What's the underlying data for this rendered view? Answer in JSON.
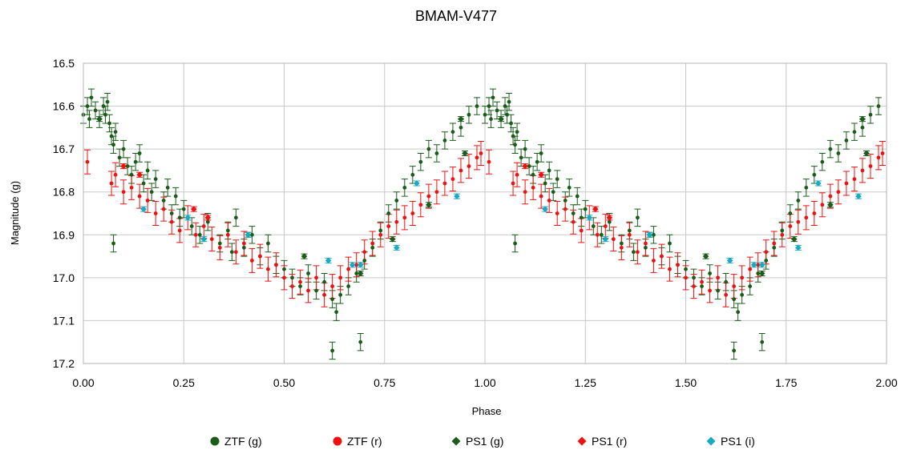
{
  "chart_data": {
    "type": "scatter",
    "title": "BMAM-V477",
    "xlabel": "Phase",
    "ylabel": "Magnitude (g)",
    "xlim": [
      0,
      2
    ],
    "ylim": [
      16.5,
      17.2
    ],
    "y_inverted": true,
    "grid": true,
    "legend_position": "bottom",
    "x_ticks": [
      0,
      0.25,
      0.5,
      0.75,
      1,
      1.25,
      1.5,
      1.75,
      2
    ],
    "x_tick_labels": [
      "0.00",
      "0.25",
      "0.50",
      "0.75",
      "1.00",
      "1.25",
      "1.50",
      "1.75",
      "2.00"
    ],
    "y_ticks": [
      16.5,
      16.6,
      16.7,
      16.8,
      16.9,
      17.0,
      17.1,
      17.2
    ],
    "y_tick_labels": [
      "16.5",
      "16.6",
      "16.7",
      "16.8",
      "16.9",
      "17.0",
      "17.1",
      "17.2"
    ],
    "series": [
      {
        "name": "ZTF (g)",
        "color": "#1a5c1a",
        "marker": "circle",
        "error": 0.02,
        "points": [
          [
            0.0,
            16.62
          ],
          [
            0.01,
            16.6
          ],
          [
            0.015,
            16.63
          ],
          [
            0.02,
            16.58
          ],
          [
            0.03,
            16.61
          ],
          [
            0.04,
            16.63
          ],
          [
            0.05,
            16.6
          ],
          [
            0.055,
            16.62
          ],
          [
            0.06,
            16.59
          ],
          [
            0.065,
            16.64
          ],
          [
            0.07,
            16.67
          ],
          [
            0.075,
            16.69
          ],
          [
            0.08,
            16.66
          ],
          [
            0.09,
            16.72
          ],
          [
            0.1,
            16.7
          ],
          [
            0.11,
            16.74
          ],
          [
            0.12,
            16.76
          ],
          [
            0.13,
            16.73
          ],
          [
            0.14,
            16.71
          ],
          [
            0.15,
            16.78
          ],
          [
            0.16,
            16.75
          ],
          [
            0.17,
            16.8
          ],
          [
            0.18,
            16.77
          ],
          [
            0.2,
            16.82
          ],
          [
            0.21,
            16.79
          ],
          [
            0.22,
            16.85
          ],
          [
            0.23,
            16.81
          ],
          [
            0.24,
            16.86
          ],
          [
            0.25,
            16.84
          ],
          [
            0.27,
            16.88
          ],
          [
            0.29,
            16.9
          ],
          [
            0.31,
            16.87
          ],
          [
            0.34,
            16.92
          ],
          [
            0.36,
            16.89
          ],
          [
            0.37,
            16.94
          ],
          [
            0.38,
            16.86
          ],
          [
            0.4,
            16.93
          ],
          [
            0.42,
            16.9
          ],
          [
            0.44,
            16.95
          ],
          [
            0.46,
            16.92
          ],
          [
            0.48,
            16.97
          ],
          [
            0.5,
            16.98
          ],
          [
            0.52,
            17.0
          ],
          [
            0.54,
            17.02
          ],
          [
            0.56,
            16.99
          ],
          [
            0.58,
            17.03
          ],
          [
            0.6,
            17.01
          ],
          [
            0.62,
            17.05
          ],
          [
            0.63,
            17.08
          ],
          [
            0.64,
            17.04
          ],
          [
            0.66,
            17.02
          ],
          [
            0.68,
            16.99
          ],
          [
            0.7,
            16.96
          ],
          [
            0.72,
            16.93
          ],
          [
            0.74,
            16.89
          ],
          [
            0.76,
            16.85
          ],
          [
            0.78,
            16.82
          ],
          [
            0.8,
            16.79
          ],
          [
            0.82,
            16.76
          ],
          [
            0.84,
            16.73
          ],
          [
            0.86,
            16.7
          ],
          [
            0.88,
            16.71
          ],
          [
            0.9,
            16.68
          ],
          [
            0.92,
            16.66
          ],
          [
            0.94,
            16.65
          ],
          [
            0.96,
            16.62
          ],
          [
            0.98,
            16.6
          ],
          [
            0.075,
            16.92
          ],
          [
            0.62,
            17.17
          ],
          [
            0.69,
            17.15
          ]
        ]
      },
      {
        "name": "ZTF (r)",
        "color": "#ee1111",
        "marker": "circle",
        "error": 0.028,
        "points": [
          [
            0.01,
            16.73
          ],
          [
            0.07,
            16.78
          ],
          [
            0.08,
            16.76
          ],
          [
            0.1,
            16.8
          ],
          [
            0.12,
            16.79
          ],
          [
            0.14,
            16.81
          ],
          [
            0.16,
            16.82
          ],
          [
            0.18,
            16.85
          ],
          [
            0.2,
            16.84
          ],
          [
            0.22,
            16.87
          ],
          [
            0.24,
            16.89
          ],
          [
            0.26,
            16.86
          ],
          [
            0.28,
            16.9
          ],
          [
            0.3,
            16.88
          ],
          [
            0.32,
            16.91
          ],
          [
            0.34,
            16.93
          ],
          [
            0.36,
            16.9
          ],
          [
            0.38,
            16.94
          ],
          [
            0.4,
            16.92
          ],
          [
            0.42,
            16.96
          ],
          [
            0.44,
            16.95
          ],
          [
            0.46,
            16.98
          ],
          [
            0.48,
            16.97
          ],
          [
            0.5,
            17.0
          ],
          [
            0.52,
            17.02
          ],
          [
            0.54,
            17.01
          ],
          [
            0.56,
            17.03
          ],
          [
            0.58,
            17.0
          ],
          [
            0.6,
            17.04
          ],
          [
            0.62,
            17.02
          ],
          [
            0.64,
            17.0
          ],
          [
            0.66,
            16.98
          ],
          [
            0.68,
            16.97
          ],
          [
            0.7,
            16.94
          ],
          [
            0.72,
            16.92
          ],
          [
            0.74,
            16.9
          ],
          [
            0.76,
            16.88
          ],
          [
            0.78,
            16.87
          ],
          [
            0.8,
            16.86
          ],
          [
            0.82,
            16.85
          ],
          [
            0.84,
            16.83
          ],
          [
            0.86,
            16.81
          ],
          [
            0.88,
            16.8
          ],
          [
            0.9,
            16.78
          ],
          [
            0.92,
            16.77
          ],
          [
            0.94,
            16.75
          ],
          [
            0.96,
            16.74
          ],
          [
            0.98,
            16.72
          ],
          [
            0.99,
            16.71
          ]
        ]
      },
      {
        "name": "PS1 (g)",
        "color": "#1a5c1a",
        "marker": "diamond",
        "error": 0.005,
        "points": [
          [
            0.04,
            16.63
          ],
          [
            0.41,
            16.9
          ],
          [
            0.55,
            16.95
          ],
          [
            0.69,
            16.99
          ],
          [
            0.77,
            16.91
          ],
          [
            0.86,
            16.83
          ],
          [
            0.94,
            16.63
          ],
          [
            0.95,
            16.71
          ]
        ]
      },
      {
        "name": "PS1 (r)",
        "color": "#ee1111",
        "marker": "diamond",
        "error": 0.005,
        "points": [
          [
            0.1,
            16.74
          ],
          [
            0.14,
            16.76
          ],
          [
            0.275,
            16.84
          ],
          [
            0.31,
            16.86
          ]
        ]
      },
      {
        "name": "PS1 (i)",
        "color": "#1aa9c2",
        "marker": "diamond",
        "error": 0.005,
        "points": [
          [
            0.15,
            16.84
          ],
          [
            0.26,
            16.86
          ],
          [
            0.3,
            16.91
          ],
          [
            0.41,
            16.9
          ],
          [
            0.61,
            16.96
          ],
          [
            0.67,
            16.97
          ],
          [
            0.69,
            16.97
          ],
          [
            0.78,
            16.93
          ],
          [
            0.83,
            16.78
          ],
          [
            0.93,
            16.81
          ]
        ]
      }
    ]
  }
}
